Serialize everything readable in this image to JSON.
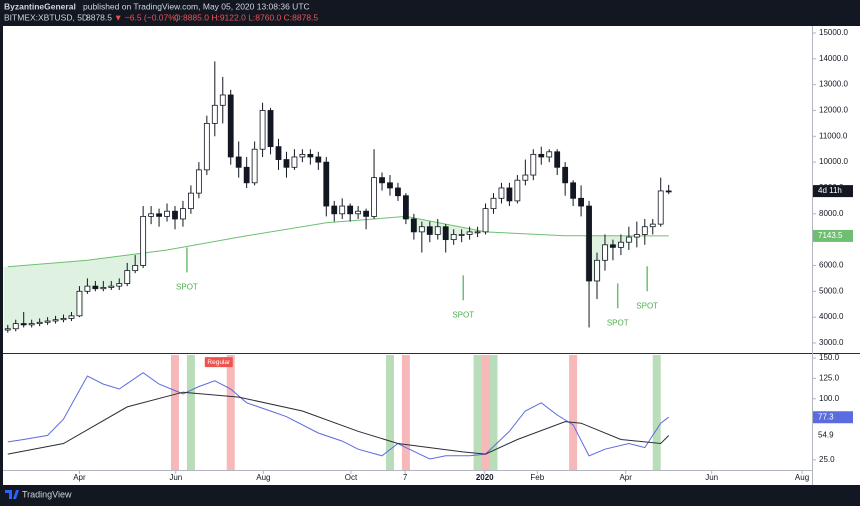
{
  "header": {
    "author": "ByzantineGeneral",
    "published": "published on TradingView.com, May 05, 2020 13:08:36 UTC",
    "symbol": "BITMEX:XBTUSD, 5D",
    "price": "8878.5",
    "change": "▼ −6.5 (−0.07%)",
    "ohlc": "O:8885.0 H:9122.0 L:8760.0 C:8878.5"
  },
  "footer": {
    "brand": "TradingView"
  },
  "chart_data": [
    {
      "type": "candlestick",
      "open": [
        3500,
        3550,
        3750,
        3700,
        3750,
        3800,
        3850,
        3900,
        3950,
        4050,
        5000,
        5200,
        5100,
        5150,
        5200,
        5300,
        5800,
        6000,
        7900,
        8000,
        7900,
        8100,
        7800,
        8200,
        8800,
        9700,
        11500,
        12200,
        12600,
        10200,
        9800,
        9200,
        10500,
        12000,
        10600,
        10100,
        9800,
        10200,
        10300,
        10200,
        10000,
        8300,
        8000,
        8300,
        8000,
        8100,
        7900,
        9400,
        9200,
        9000,
        8700,
        7800,
        7300,
        7500,
        7200,
        7500,
        7000,
        7200,
        7200,
        7300,
        7300,
        8200,
        8600,
        9000,
        8500,
        9300,
        9500,
        10300,
        10200,
        10400,
        9800,
        9200,
        8600,
        8300,
        5400,
        6200,
        6800,
        6700,
        6900,
        7100,
        7200,
        7500,
        7600,
        8885
      ],
      "high": [
        3700,
        3900,
        4200,
        3900,
        3950,
        4000,
        4050,
        4100,
        4200,
        5200,
        5500,
        5400,
        5400,
        5400,
        5500,
        6100,
        6400,
        8300,
        8300,
        8200,
        8400,
        8300,
        8500,
        9100,
        10000,
        11800,
        13900,
        13300,
        12800,
        10800,
        10200,
        10800,
        12300,
        12100,
        10900,
        10400,
        10500,
        10500,
        10500,
        10400,
        10200,
        8500,
        8600,
        8400,
        8300,
        8200,
        10500,
        9600,
        9500,
        9200,
        8800,
        8000,
        7700,
        7700,
        7800,
        7600,
        7400,
        7400,
        7500,
        7500,
        8400,
        8800,
        9200,
        9200,
        9500,
        10100,
        10500,
        10600,
        10500,
        10500,
        10000,
        9300,
        9100,
        8500,
        6500,
        7200,
        7000,
        7200,
        7500,
        7700,
        7800,
        7800,
        9400,
        9122
      ],
      "low": [
        3400,
        3450,
        3600,
        3600,
        3650,
        3700,
        3750,
        3800,
        3850,
        4000,
        4900,
        5000,
        5000,
        5050,
        5050,
        5200,
        5700,
        5900,
        7600,
        7500,
        7700,
        7400,
        7500,
        8000,
        8600,
        9500,
        11000,
        11500,
        9900,
        9400,
        9000,
        9100,
        10200,
        10300,
        9700,
        9400,
        9700,
        10000,
        9900,
        9700,
        7900,
        7700,
        7800,
        7700,
        7800,
        7400,
        7800,
        8900,
        8700,
        8500,
        7600,
        7000,
        6500,
        6900,
        7000,
        6500,
        6800,
        6900,
        7000,
        7100,
        7200,
        8000,
        8400,
        8300,
        8400,
        9100,
        9300,
        9900,
        10000,
        9500,
        8700,
        8300,
        7900,
        3600,
        4700,
        5800,
        6200,
        6400,
        6600,
        6700,
        6800,
        7200,
        7500,
        8760
      ],
      "close": [
        3550,
        3750,
        3700,
        3750,
        3800,
        3850,
        3900,
        3950,
        4050,
        5000,
        5200,
        5100,
        5150,
        5200,
        5300,
        5800,
        6000,
        7900,
        8000,
        7900,
        8100,
        7800,
        8200,
        8800,
        9700,
        11500,
        12200,
        12600,
        10200,
        9800,
        9200,
        10500,
        12000,
        10600,
        10100,
        9800,
        10200,
        10300,
        10200,
        10000,
        8300,
        8000,
        8300,
        8000,
        8100,
        7900,
        9400,
        9200,
        9000,
        8700,
        7800,
        7300,
        7500,
        7200,
        7500,
        7000,
        7200,
        7200,
        7300,
        7300,
        8200,
        8600,
        9000,
        8500,
        9300,
        9500,
        10300,
        10200,
        10400,
        9800,
        9200,
        8600,
        8300,
        5400,
        6200,
        6800,
        6700,
        6900,
        7100,
        7200,
        7500,
        7600,
        8885,
        8878.5
      ],
      "up_color": "#ffffff",
      "down_color": "#131722",
      "series": [
        {
          "color": "#6fbf73",
          "x": [
            0,
            10,
            20,
            30,
            40,
            50,
            60,
            70,
            75,
            83
          ],
          "values": [
            5950,
            6200,
            6600,
            7150,
            7650,
            7900,
            7300,
            7150,
            7150,
            7143.5
          ]
        }
      ],
      "xlim": [
        -0.6,
        101
      ],
      "ylim": [
        2650,
        15270
      ],
      "yticks": [
        {
          "value": 3000,
          "label": "3000.0"
        },
        {
          "value": 4000,
          "label": "4000.0"
        },
        {
          "value": 5000,
          "label": "5000.0"
        },
        {
          "value": 6000,
          "label": "6000.0"
        },
        {
          "value": 7000,
          "label": "7000.0"
        },
        {
          "value": 8000,
          "label": "8000.0"
        },
        {
          "value": 9000,
          "label": "9000.0"
        },
        {
          "value": 10000,
          "label": "10000.0"
        },
        {
          "value": 11000,
          "label": "11000.0"
        },
        {
          "value": 12000,
          "label": "12000.0"
        },
        {
          "value": 13000,
          "label": "13000.0"
        },
        {
          "value": 14000,
          "label": "14000.0"
        },
        {
          "value": 15000,
          "label": "15000.0"
        }
      ],
      "countdown": "4d 11h",
      "annotations": [
        {
          "text": "SPOT",
          "x": 22.5,
          "y": 5150
        },
        {
          "text": "SPOT",
          "x": 57.2,
          "y": 4070
        },
        {
          "text": "SPOT",
          "x": 76.6,
          "y": 3760
        },
        {
          "text": "SPOT",
          "x": 80.3,
          "y": 4420
        }
      ]
    },
    {
      "type": "line",
      "series": [
        {
          "color": "#5b6be0",
          "x": [
            0,
            2,
            5,
            7,
            10,
            12,
            14,
            17,
            19,
            22,
            24,
            26,
            28,
            30,
            33,
            35,
            39,
            42,
            44,
            47,
            49,
            50,
            53,
            55,
            58,
            60,
            63,
            65,
            67,
            69,
            71,
            73,
            75,
            78,
            80,
            82,
            83
          ],
          "values": [
            47,
            50,
            55,
            75,
            128,
            118,
            112,
            132,
            118,
            106,
            115,
            122,
            112,
            95,
            85,
            78,
            58,
            48,
            38,
            30,
            45,
            40,
            26,
            30,
            30,
            32,
            60,
            85,
            95,
            80,
            68,
            30,
            38,
            45,
            40,
            70,
            77.3
          ]
        },
        {
          "color": "#2a2e39",
          "x": [
            0,
            7,
            15,
            22,
            29,
            37,
            44,
            49,
            57,
            60,
            64,
            70,
            72,
            77,
            82,
            83
          ],
          "values": [
            32,
            45,
            90,
            108,
            102,
            85,
            60,
            45,
            35,
            32,
            50,
            72,
            70,
            50,
            45,
            54.9
          ]
        }
      ],
      "bands": [
        {
          "x": 21,
          "color": "#f4a6a6"
        },
        {
          "x": 23,
          "color": "#a8d5a8"
        },
        {
          "x": 28,
          "color": "#f4a6a6"
        },
        {
          "x": 48,
          "color": "#a8d5a8"
        },
        {
          "x": 50,
          "color": "#f4a6a6"
        },
        {
          "x": 59,
          "color": "#a8d5a8"
        },
        {
          "x": 60,
          "color": "#f4a6a6"
        },
        {
          "x": 61,
          "color": "#a8d5a8"
        },
        {
          "x": 71,
          "color": "#f4a6a6"
        },
        {
          "x": 81.5,
          "color": "#a8d5a8"
        }
      ],
      "annotations": [
        {
          "text": "Regular",
          "x": 26.5,
          "y": 145
        }
      ],
      "xlim": [
        -0.6,
        101
      ],
      "ylim": [
        12.5,
        153.75
      ],
      "yticks": [
        {
          "value": 25,
          "label": "25.0"
        },
        {
          "value": 50,
          "label": "50.0"
        },
        {
          "value": 75,
          "label": "75.0"
        },
        {
          "value": 100,
          "label": "100.0"
        },
        {
          "value": 125,
          "label": "125.0"
        },
        {
          "value": 150,
          "label": "150.0"
        }
      ],
      "xticks": [
        {
          "value": 9,
          "label": "Apr"
        },
        {
          "value": 21.1,
          "label": "Jun"
        },
        {
          "value": 32.1,
          "label": "Aug"
        },
        {
          "value": 43.1,
          "label": "Oct"
        },
        {
          "value": 49.9,
          "label": "7"
        },
        {
          "value": 59.9,
          "label": "2020"
        },
        {
          "value": 66.5,
          "label": "Feb"
        },
        {
          "value": 77.6,
          "label": "Apr"
        },
        {
          "value": 88.4,
          "label": "Jun"
        },
        {
          "value": 99.75,
          "label": "Aug"
        }
      ]
    }
  ]
}
